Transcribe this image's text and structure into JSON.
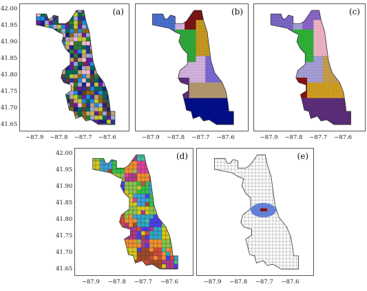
{
  "figure": {
    "panels": [
      {
        "id": "a",
        "label": "(a)",
        "x_ticks": [
          "−87.9",
          "−87.8",
          "−87.7",
          "−87.6"
        ],
        "y_ticks": [
          "42.00",
          "41.95",
          "41.90",
          "41.85",
          "41.80",
          "41.75",
          "41.70",
          "41.65"
        ],
        "style": "many-colors",
        "palette": [
          "#1a237e",
          "#8b6914",
          "#c9a27a",
          "#2e7d32",
          "#6a1b9a",
          "#9fa8da",
          "#f8bbd0",
          "#1e88e5",
          "#5d4037",
          "#283593",
          "#c0ca33",
          "#00695c"
        ]
      },
      {
        "id": "b",
        "label": "(b)",
        "x_ticks": [
          "−87.9",
          "−87.8",
          "−87.7",
          "−87.6"
        ],
        "y_ticks": [],
        "style": "regions",
        "palette": [
          "#4a6fd3",
          "#7a1414",
          "#2faa3a",
          "#c89a1e",
          "#d8b4e2",
          "#7c6bd9",
          "#5c2d7a",
          "#b89a6e",
          "#000e8a"
        ]
      },
      {
        "id": "c",
        "label": "(c)",
        "x_ticks": [
          "−87.9",
          "−87.8",
          "−87.7",
          "−87.6"
        ],
        "y_ticks": [],
        "style": "regions",
        "palette": [
          "#7d67c8",
          "#8a67c8",
          "#2fb33a",
          "#f2b6c6",
          "#a8a0d8",
          "#c9a04a",
          "#8b1010",
          "#d4a020",
          "#5c2d7a"
        ]
      },
      {
        "id": "d",
        "label": "(d)",
        "x_ticks": [
          "−87.9",
          "−87.8",
          "−87.7",
          "−87.6"
        ],
        "y_ticks": [
          "42.00",
          "41.95",
          "41.90",
          "41.85",
          "41.80",
          "41.75",
          "41.70",
          "41.65"
        ],
        "style": "many-colors",
        "palette": [
          "#4b3df0",
          "#d4c81c",
          "#31c14a",
          "#d04c3c",
          "#b03a8a",
          "#2fa8c8",
          "#e0409a",
          "#8bc34a",
          "#a04a28",
          "#3f9fd8",
          "#f09030",
          "#40c0a0"
        ]
      },
      {
        "id": "e",
        "label": "(e)",
        "x_ticks": [
          "−87.9",
          "−87.8",
          "−87.7",
          "−87.6"
        ],
        "y_ticks": [],
        "style": "outline-highlight",
        "palette": [
          "#e8f4f8",
          "#4a6fd3",
          "#8b1010"
        ]
      }
    ]
  }
}
